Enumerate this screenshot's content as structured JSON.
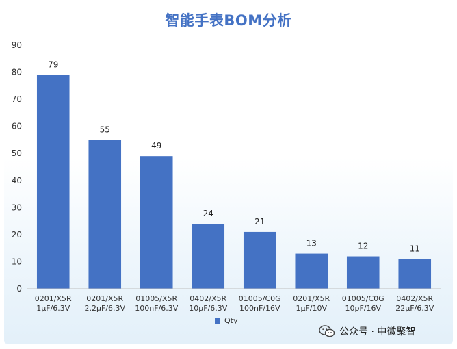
{
  "chart_data": {
    "type": "bar",
    "title": "智能手表BOM分析",
    "categories": [
      [
        "0201/X5R",
        "1µF/6.3V"
      ],
      [
        "0201/X5R",
        "2.2µF/6.3V"
      ],
      [
        "01005/X5R",
        "100nF/6.3V"
      ],
      [
        "0402/X5R",
        "10µF/6.3V"
      ],
      [
        "01005/C0G",
        "100nF/16V"
      ],
      [
        "0201/X5R",
        "1µF/10V"
      ],
      [
        "01005/C0G",
        "10pF/16V"
      ],
      [
        "0402/X5R",
        "22µF/6.3V"
      ]
    ],
    "series": [
      {
        "name": "Qty",
        "values": [
          79,
          55,
          49,
          24,
          21,
          13,
          12,
          11
        ],
        "color": "#4472c4"
      }
    ],
    "ylim": [
      0,
      90
    ],
    "yticks": [
      0,
      10,
      20,
      30,
      40,
      50,
      60,
      70,
      80,
      90
    ],
    "grid": false,
    "data_labels": true,
    "legend_position": "bottom"
  },
  "watermark": {
    "icon": "wechat-icon",
    "text": "公众号 · 中微聚智"
  }
}
